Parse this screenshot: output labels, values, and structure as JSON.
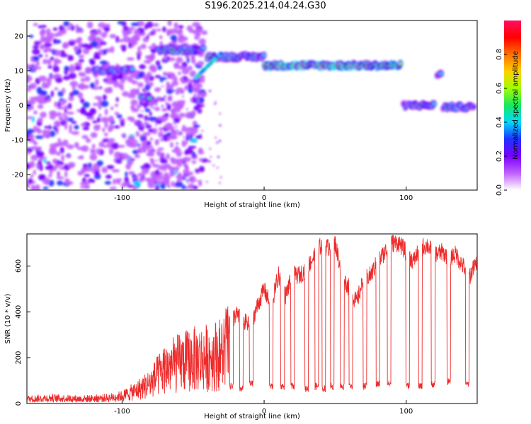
{
  "title": "S196.2025.214.04.24.G30",
  "colors": {
    "snr_line": "#ee2a2a",
    "colormap": [
      "#ffffff",
      "#c060ff",
      "#7a00ff",
      "#2030ff",
      "#00d8ff",
      "#18e860",
      "#a0ff00",
      "#ffd000",
      "#ff7000",
      "#ff0000",
      "#ff1060"
    ]
  },
  "chart_data": [
    {
      "type": "heatmap",
      "title": "S196.2025.214.04.24.G30",
      "xlabel": "Height of straight line (km)",
      "ylabel": "Frequency (Hz)",
      "xlim": [
        -167,
        150
      ],
      "ylim": [
        -24.5,
        24.5
      ],
      "xticks": [
        -100,
        0,
        100
      ],
      "yticks": [
        -20,
        -10,
        0,
        10,
        20
      ],
      "colorbar": {
        "label": "Normalized spectral amplitude",
        "range": [
          0,
          1
        ],
        "ticks": [
          "0.0",
          "0.2",
          "0.4",
          "0.6",
          "0.8"
        ]
      },
      "ridge": {
        "description_values": [
          {
            "x_range": [
              -165,
              -125
            ],
            "freq_range": [
              -24,
              24
            ],
            "amp": 0.3
          },
          {
            "x_range": [
              -120,
              -92
            ],
            "freq": 10,
            "amp": 0.45
          },
          {
            "x_range": [
              -87,
              -80
            ],
            "freq": 2,
            "amp": 0.5
          },
          {
            "x_range": [
              -74,
              -42
            ],
            "freq": 16,
            "amp": 0.55
          },
          {
            "x_range": [
              -40,
              0
            ],
            "freq": 14,
            "amp": 0.55
          },
          {
            "x_range": [
              0,
              96
            ],
            "freq": 11.5,
            "amp": 0.85
          },
          {
            "x_range": [
              98,
              120
            ],
            "freq": 0,
            "amp": 0.5
          },
          {
            "x_range": [
              122,
              125
            ],
            "freq": 9,
            "amp": 0.45
          },
          {
            "x_range": [
              126,
              148
            ],
            "freq": -0.5,
            "amp": 0.5
          }
        ]
      }
    },
    {
      "type": "line",
      "xlabel": "Height of straight line (km)",
      "ylabel": "SNR (10 * v/v)",
      "xlim": [
        -167,
        150
      ],
      "ylim": [
        0,
        740
      ],
      "xticks": [
        -100,
        0,
        100
      ],
      "yticks": [
        0,
        200,
        400,
        600
      ],
      "series": [
        {
          "x": [
            -167,
            -150,
            -130,
            -110,
            -100,
            -90,
            -80,
            -70,
            -60,
            -50,
            -40,
            -30,
            -25,
            -20,
            -15,
            -10,
            -5,
            0,
            5,
            10,
            15,
            20,
            25,
            30,
            35,
            40,
            45,
            50,
            55,
            60,
            65,
            70,
            75,
            80,
            85,
            90,
            95,
            100,
            105,
            110,
            115,
            120,
            125,
            130,
            135,
            140,
            145,
            150
          ],
          "y": [
            25,
            30,
            25,
            30,
            40,
            70,
            110,
            190,
            220,
            240,
            250,
            270,
            340,
            390,
            360,
            340,
            420,
            500,
            420,
            560,
            470,
            560,
            560,
            590,
            640,
            690,
            680,
            700,
            560,
            500,
            440,
            540,
            560,
            620,
            660,
            700,
            700,
            660,
            620,
            680,
            690,
            650,
            660,
            640,
            650,
            600,
            560,
            620
          ]
        }
      ],
      "dips": {
        "x": [
          -23,
          -16,
          -9,
          5,
          13,
          20,
          30,
          37,
          42,
          48,
          55,
          61,
          71,
          80,
          88,
          101,
          110,
          119,
          130,
          143
        ],
        "y": [
          60,
          50,
          70,
          60,
          60,
          60,
          50,
          60,
          50,
          60,
          60,
          60,
          60,
          70,
          70,
          60,
          60,
          70,
          80,
          70
        ]
      }
    }
  ]
}
